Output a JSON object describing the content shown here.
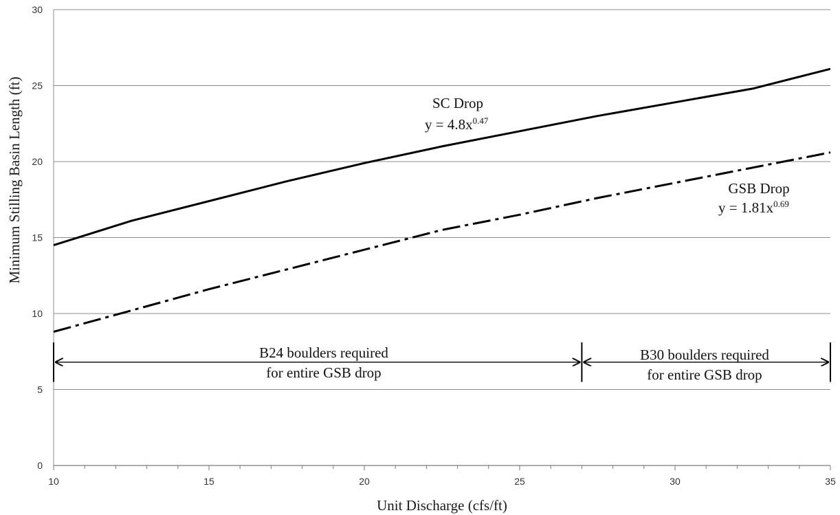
{
  "chart_data": {
    "type": "line",
    "xlabel": "Unit Discharge (cfs/ft)",
    "ylabel": "Minimum Stilling Basin Length (ft)",
    "xlim": [
      10,
      35
    ],
    "ylim": [
      0,
      30
    ],
    "x_ticks": [
      "10",
      "15",
      "20",
      "25",
      "30",
      "35"
    ],
    "y_ticks": [
      "0",
      "5",
      "10",
      "15",
      "20",
      "25",
      "30"
    ],
    "grid": "horizontal",
    "series": [
      {
        "name": "SC Drop",
        "equation": "y = 4.8x",
        "exponent": "0.47",
        "style": "solid",
        "color": "#000000",
        "x": [
          10,
          12.5,
          15,
          17.5,
          20,
          22.5,
          25,
          27.5,
          30,
          32.5,
          35
        ],
        "y": [
          14.5,
          16.1,
          17.4,
          18.7,
          19.9,
          21.0,
          22.0,
          23.0,
          23.9,
          24.8,
          26.1
        ]
      },
      {
        "name": "GSB Drop",
        "equation": "y = 1.81x",
        "exponent": "0.69",
        "style": "dash-dot",
        "color": "#000000",
        "x": [
          10,
          12.5,
          15,
          17.5,
          20,
          22.5,
          25,
          27.5,
          30,
          32.5,
          35
        ],
        "y": [
          8.8,
          10.2,
          11.6,
          12.9,
          14.2,
          15.5,
          16.5,
          17.6,
          18.6,
          19.6,
          20.6
        ]
      }
    ],
    "ranges": [
      {
        "label_line1": "B24 boulders required",
        "label_line2": "for entire GSB drop",
        "x_start": 10,
        "x_end": 27,
        "y": 6.8
      },
      {
        "label_line1": "B30 boulders required",
        "label_line2": "for entire GSB drop",
        "x_start": 27,
        "x_end": 35,
        "y": 6.8
      }
    ]
  }
}
